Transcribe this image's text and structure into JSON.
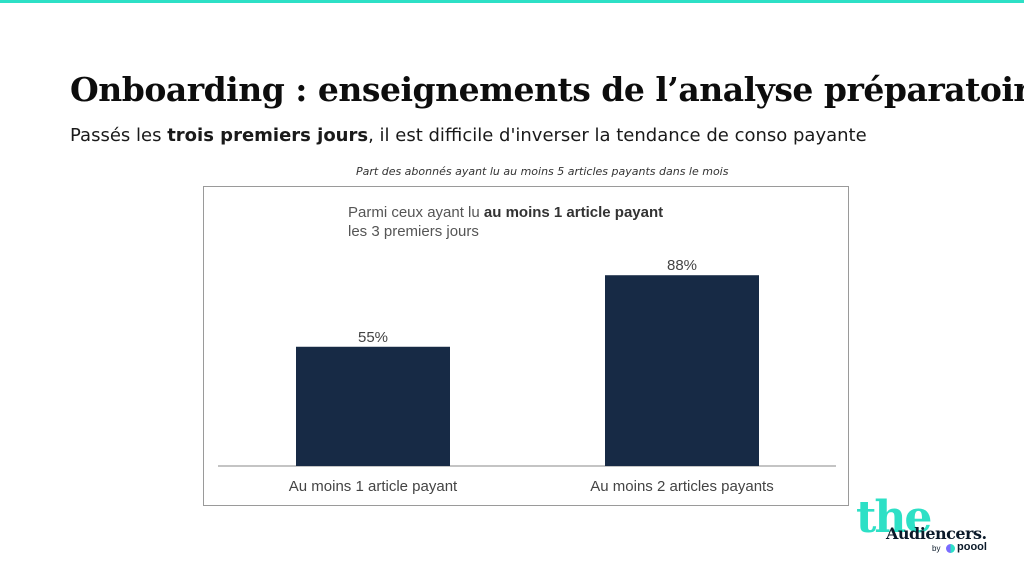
{
  "slide": {
    "title": "Onboarding : enseignements de l’analyse préparatoire",
    "subtitle_pre": "Passés les ",
    "subtitle_bold": "trois premiers jours",
    "subtitle_post": ", il est difficile d'inverser la tendance de conso payante",
    "caption": "Part des abonnés ayant lu au moins 5 articles payants dans le mois",
    "accent_color": "#2de0c6"
  },
  "annotation": {
    "line1_pre": "Parmi ceux ayant lu ",
    "line1_bold": "au moins 1 article payant",
    "line2": "les 3 premiers jours"
  },
  "chart_data": {
    "type": "bar",
    "categories": [
      "Au moins 1 article payant",
      "Au moins 2 articles payants"
    ],
    "values": [
      55,
      88
    ],
    "value_labels": [
      "55%",
      "88%"
    ],
    "ylim": [
      0,
      100
    ],
    "bar_color": "#172a45",
    "grid": false,
    "xlabel": "",
    "ylabel": ""
  },
  "logo": {
    "the": "the",
    "audiencers": "Audiencers.",
    "by": "by",
    "pool": "poool"
  }
}
